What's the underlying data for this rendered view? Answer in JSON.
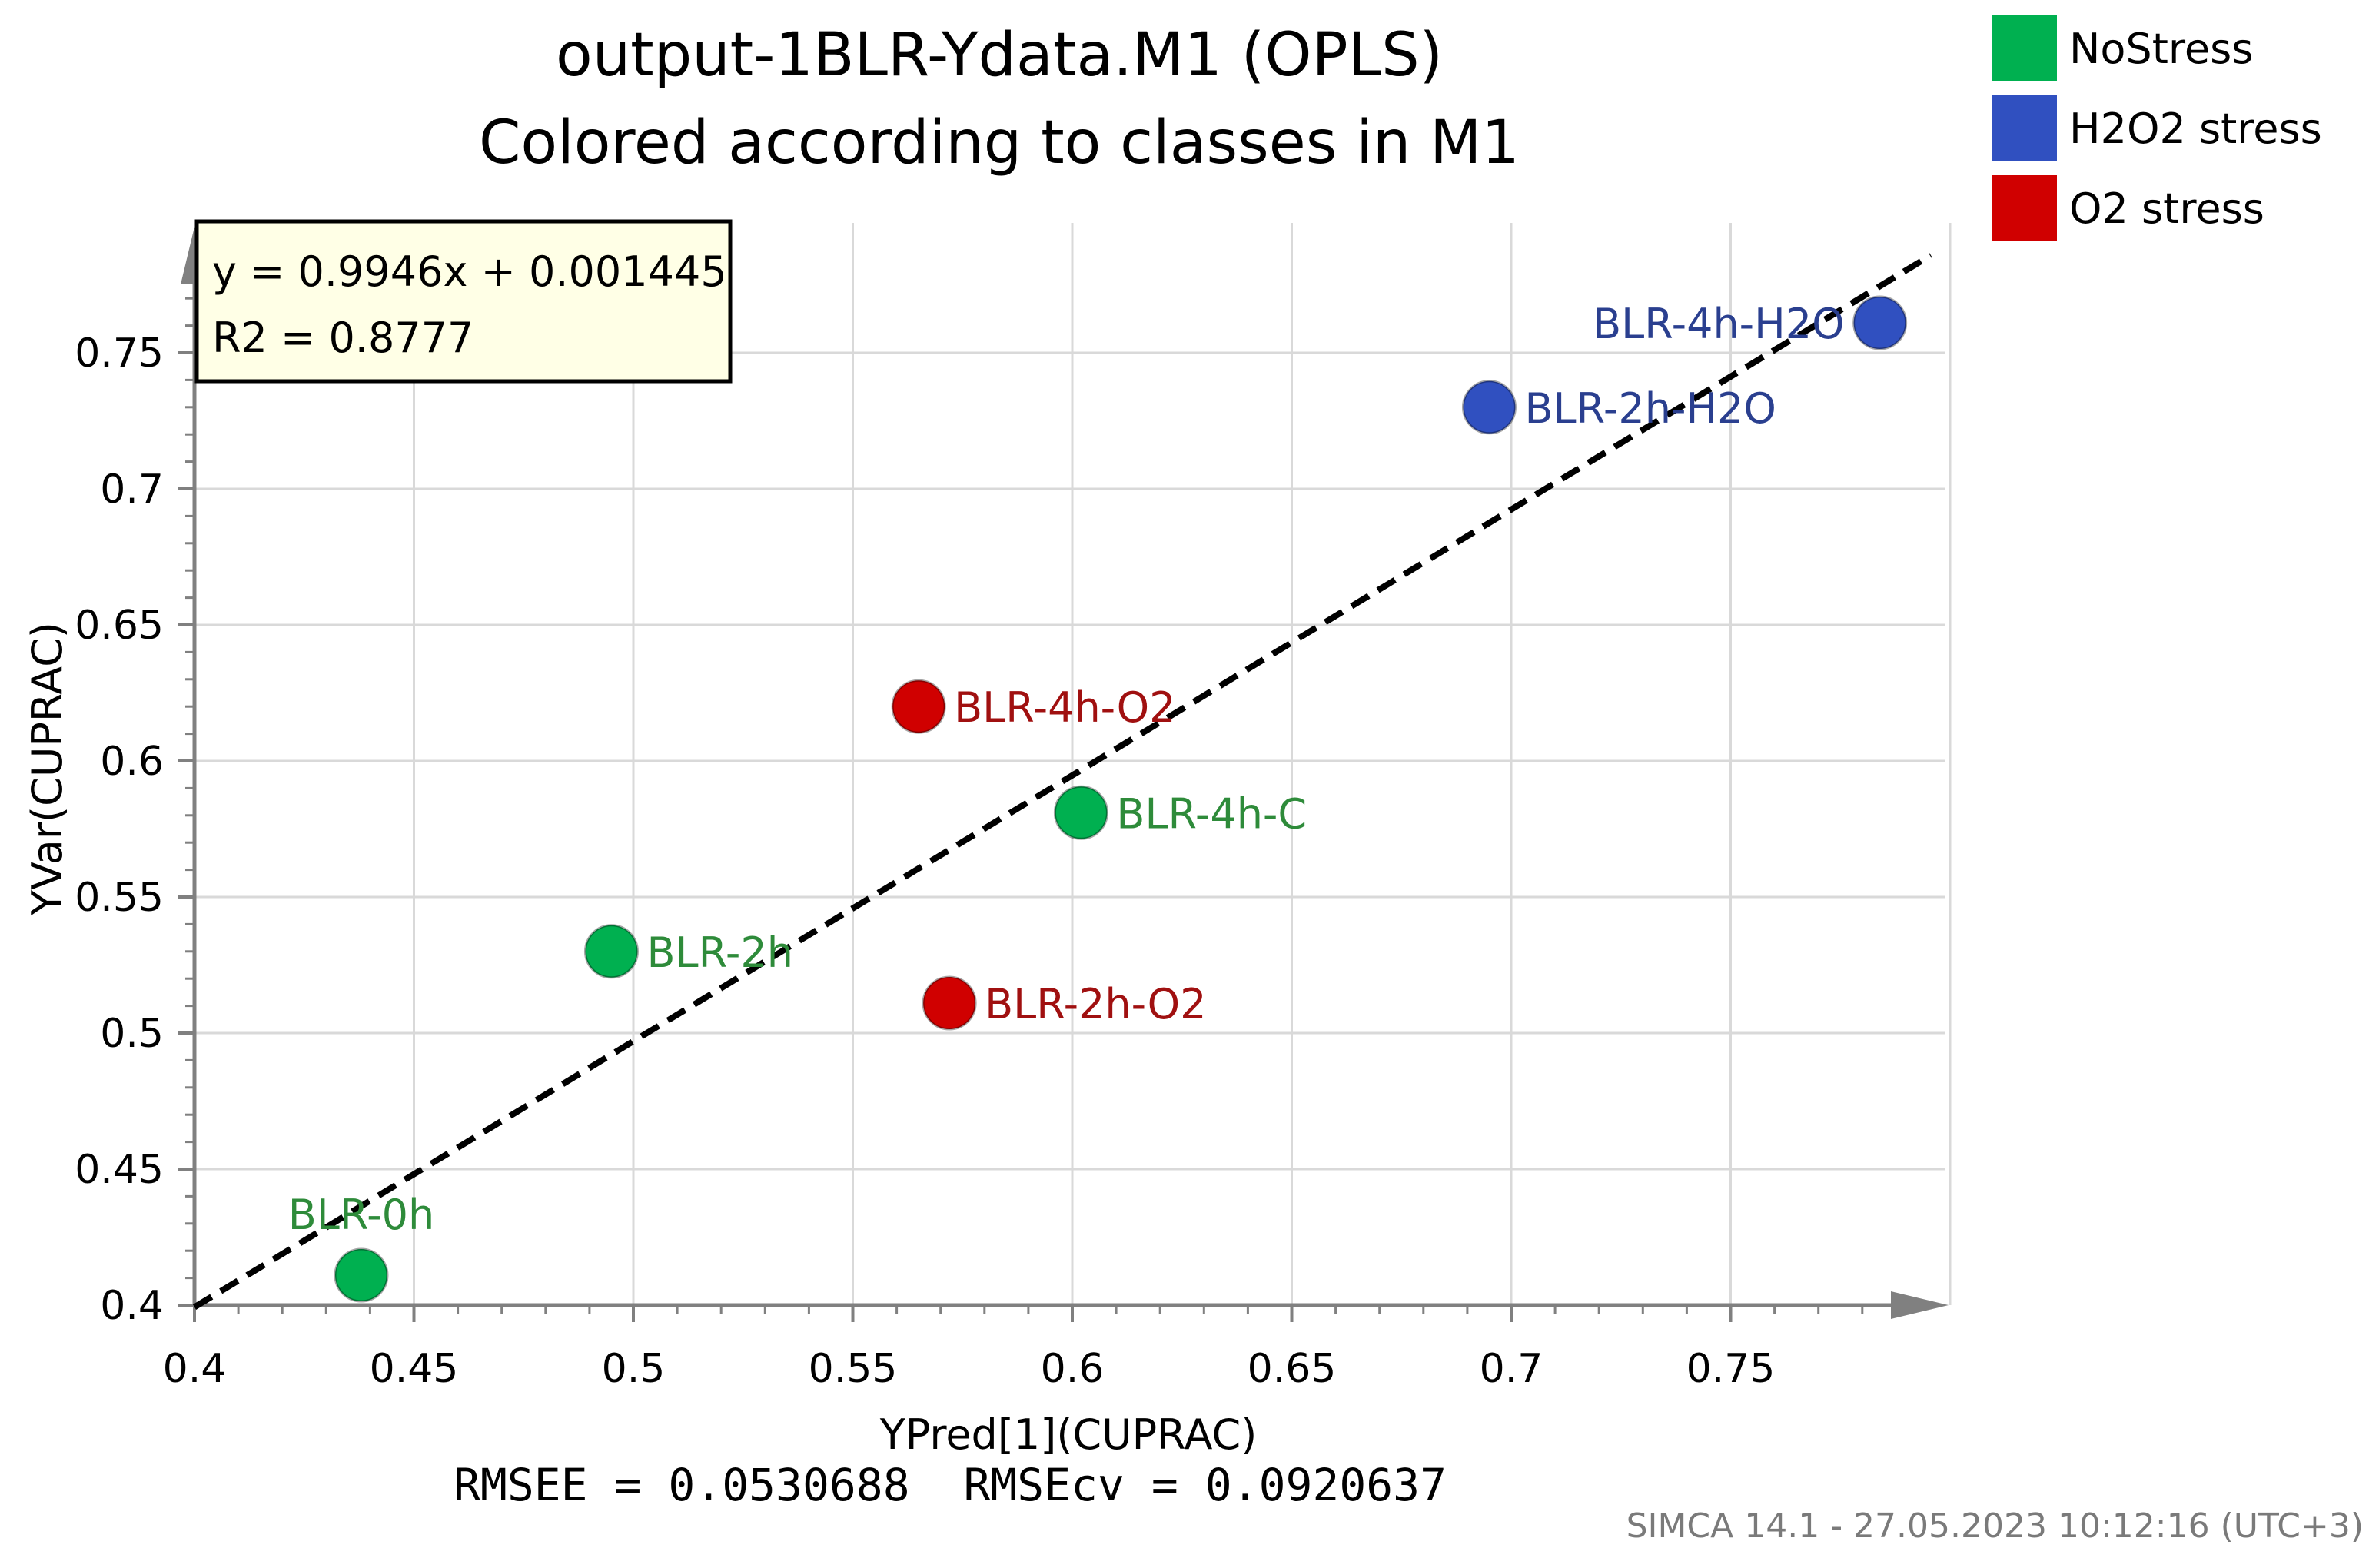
{
  "chart_data": {
    "type": "scatter",
    "title": "output-1BLR-Ydata.M1 (OPLS)",
    "subtitle": "Colored according to classes in M1",
    "xlabel": "YPred[1](CUPRAC)",
    "ylabel": "YVar(CUPRAC)",
    "xlim": [
      0.4,
      0.8
    ],
    "ylim": [
      0.4,
      0.8
    ],
    "x_ticks": [
      0.4,
      0.45,
      0.5,
      0.55,
      0.6,
      0.65,
      0.7,
      0.75
    ],
    "y_ticks": [
      0.4,
      0.45,
      0.5,
      0.55,
      0.6,
      0.65,
      0.7,
      0.75
    ],
    "x_tick_labels": [
      "0.4",
      "0.45",
      "0.5",
      "0.55",
      "0.6",
      "0.65",
      "0.7",
      "0.75"
    ],
    "y_tick_labels": [
      "0.4",
      "0.45",
      "0.5",
      "0.55",
      "0.6",
      "0.65",
      "0.7",
      "0.75"
    ],
    "grid": true,
    "legend": [
      {
        "name": "NoStress",
        "color": "#00b050"
      },
      {
        "name": "H2O2 stress",
        "color": "#3050c0"
      },
      {
        "name": "O2 stress",
        "color": "#d00000"
      }
    ],
    "legend_position": "top-right",
    "points": [
      {
        "label": "BLR-0h",
        "x": 0.438,
        "y": 0.411,
        "class": "NoStress",
        "color": "#00b050",
        "label_color": "#2e8b3a",
        "label_pos": "above"
      },
      {
        "label": "BLR-2h",
        "x": 0.495,
        "y": 0.53,
        "class": "NoStress",
        "color": "#00b050",
        "label_color": "#2e8b3a",
        "label_pos": "right"
      },
      {
        "label": "BLR-4h-C",
        "x": 0.602,
        "y": 0.581,
        "class": "NoStress",
        "color": "#00b050",
        "label_color": "#2e8b3a",
        "label_pos": "right"
      },
      {
        "label": "BLR-2h-O2",
        "x": 0.572,
        "y": 0.511,
        "class": "O2 stress",
        "color": "#d00000",
        "label_color": "#a01010",
        "label_pos": "right"
      },
      {
        "label": "BLR-4h-O2",
        "x": 0.565,
        "y": 0.62,
        "class": "O2 stress",
        "color": "#d00000",
        "label_color": "#a01010",
        "label_pos": "right"
      },
      {
        "label": "BLR-2h-H2O",
        "x": 0.695,
        "y": 0.73,
        "class": "H2O2 stress",
        "color": "#3050c0",
        "label_color": "#2a3f8f",
        "label_pos": "right"
      },
      {
        "label": "BLR-4h-H2O",
        "x": 0.784,
        "y": 0.761,
        "class": "H2O2 stress",
        "color": "#3050c0",
        "label_color": "#2a3f8f",
        "label_pos": "left"
      }
    ],
    "regression": {
      "slope": 0.9946,
      "intercept": 0.001445,
      "x_range": [
        0.4,
        0.8
      ]
    },
    "equation_lines": [
      "y = 0.9946x + 0.001445",
      "R2 = 0.8777"
    ],
    "rmse_text": "RMSEE = 0.0530688  RMSEcv = 0.0920637",
    "footer": "SIMCA 14.1 - 27.05.2023 10:12:16 (UTC+3)"
  }
}
